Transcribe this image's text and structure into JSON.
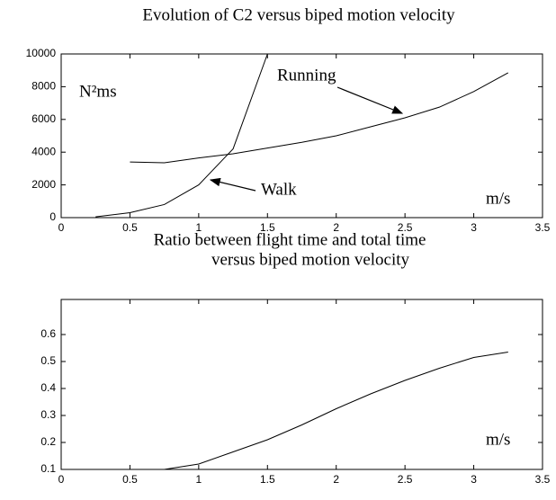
{
  "chart_data": [
    {
      "type": "line",
      "title": "Evolution of C2 versus biped motion velocity",
      "annotations": [
        "N²ms",
        "Running",
        "Walk",
        "m/s"
      ],
      "xlim": [
        0,
        3.5
      ],
      "xticks": [
        0,
        0.5,
        1,
        1.5,
        2,
        2.5,
        3,
        3.5
      ],
      "ylim": [
        0,
        10000
      ],
      "yticks": [
        0,
        2000,
        4000,
        6000,
        8000,
        10000
      ],
      "series": [
        {
          "name": "Walk",
          "color": "#000000",
          "x": [
            0.25,
            0.5,
            0.75,
            1.0,
            1.25,
            1.5
          ],
          "values": [
            50,
            300,
            800,
            2000,
            4200,
            10000
          ]
        },
        {
          "name": "Running",
          "color": "#000000",
          "x": [
            0.5,
            0.75,
            1.0,
            1.25,
            1.5,
            1.75,
            2.0,
            2.25,
            2.5,
            2.75,
            3.0,
            3.25
          ],
          "values": [
            3400,
            3350,
            3650,
            3900,
            4250,
            4600,
            5000,
            5550,
            6100,
            6750,
            7700,
            8850
          ]
        }
      ]
    },
    {
      "type": "line",
      "title": "Ratio between flight time and total  time",
      "subtitle": "versus biped motion velocity",
      "annotations": [
        "m/s"
      ],
      "xlim": [
        0,
        3.5
      ],
      "xticks": [
        0,
        0.5,
        1,
        1.5,
        2,
        2.5,
        3,
        3.5
      ],
      "ylim": [
        0.1,
        0.73
      ],
      "yticks": [
        0.1,
        0.2,
        0.3,
        0.4,
        0.5,
        0.6
      ],
      "series": [
        {
          "name": "Ratio",
          "color": "#000000",
          "x": [
            0.75,
            1.0,
            1.25,
            1.5,
            1.75,
            2.0,
            2.25,
            2.5,
            2.75,
            3.0,
            3.25
          ],
          "values": [
            0.1,
            0.12,
            0.165,
            0.21,
            0.265,
            0.325,
            0.38,
            0.43,
            0.475,
            0.515,
            0.535
          ]
        }
      ]
    }
  ]
}
